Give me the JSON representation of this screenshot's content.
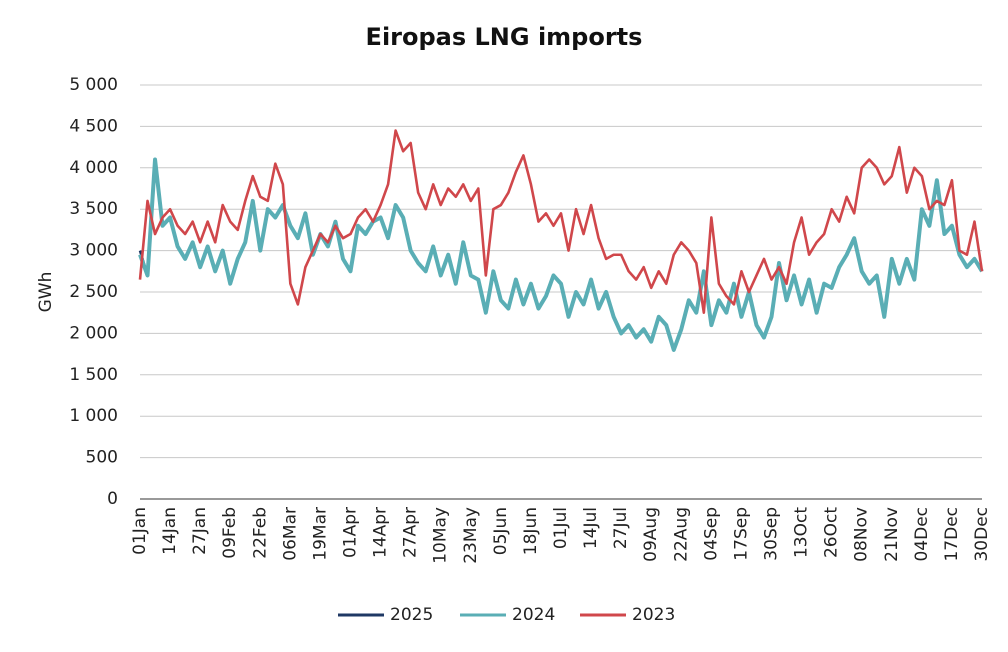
{
  "chart_data": {
    "type": "line",
    "title": "Eiropas LNG imports",
    "y_label": "GWh",
    "categories": [
      "01Jan",
      null,
      null,
      null,
      "14Jan",
      null,
      null,
      null,
      "27Jan",
      null,
      null,
      null,
      "09Feb",
      null,
      null,
      null,
      "22Feb",
      null,
      null,
      null,
      "06Mar",
      null,
      null,
      null,
      "19Mar",
      null,
      null,
      null,
      "01Apr",
      null,
      null,
      null,
      "14Apr",
      null,
      null,
      null,
      "27Apr",
      null,
      null,
      null,
      "10May",
      null,
      null,
      null,
      "23May",
      null,
      null,
      null,
      "05Jun",
      null,
      null,
      null,
      "18Jun",
      null,
      null,
      null,
      "01Jul",
      null,
      null,
      null,
      "14Jul",
      null,
      null,
      null,
      "27Jul",
      null,
      null,
      null,
      "09Aug",
      null,
      null,
      null,
      "22Aug",
      null,
      null,
      null,
      "04Sep",
      null,
      null,
      null,
      "17Sep",
      null,
      null,
      null,
      "30Sep",
      null,
      null,
      null,
      "13Oct",
      null,
      null,
      null,
      "26Oct",
      null,
      null,
      null,
      "08Nov",
      null,
      null,
      null,
      "21Nov",
      null,
      null,
      null,
      "04Dec",
      null,
      null,
      null,
      "17Dec",
      null,
      null,
      null,
      "30Dec"
    ],
    "series": [
      {
        "name": "2025",
        "color": "#1f3864",
        "values": [
          3000,
          2700,
          null,
          null,
          null,
          null,
          null,
          null,
          null,
          null,
          null,
          null,
          null,
          null,
          null,
          null,
          null,
          null,
          null,
          null,
          null,
          null,
          null,
          null,
          null,
          null,
          null,
          null,
          null,
          null,
          null,
          null,
          null,
          null,
          null,
          null,
          null,
          null,
          null,
          null,
          null,
          null,
          null,
          null,
          null,
          null,
          null,
          null,
          null,
          null,
          null,
          null,
          null,
          null,
          null,
          null,
          null,
          null,
          null,
          null,
          null,
          null,
          null,
          null,
          null,
          null,
          null,
          null,
          null,
          null,
          null,
          null,
          null,
          null,
          null,
          null,
          null,
          null,
          null,
          null,
          null,
          null,
          null,
          null,
          null,
          null,
          null,
          null,
          null,
          null,
          null,
          null,
          null,
          null,
          null,
          null,
          null,
          null,
          null,
          null,
          null,
          null,
          null,
          null,
          null,
          null,
          null,
          null,
          null,
          null,
          null,
          null,
          null
        ]
      },
      {
        "name": "2024",
        "color": "#5aaeb5",
        "values": [
          2950,
          2700,
          4100,
          3300,
          3400,
          3050,
          2900,
          3100,
          2800,
          3050,
          2750,
          3000,
          2600,
          2900,
          3100,
          3600,
          3000,
          3500,
          3400,
          3550,
          3300,
          3150,
          3450,
          2950,
          3200,
          3050,
          3350,
          2900,
          2750,
          3300,
          3200,
          3350,
          3400,
          3150,
          3550,
          3400,
          3000,
          2850,
          2750,
          3050,
          2700,
          2950,
          2600,
          3100,
          2700,
          2650,
          2250,
          2750,
          2400,
          2300,
          2650,
          2350,
          2600,
          2300,
          2450,
          2700,
          2600,
          2200,
          2500,
          2350,
          2650,
          2300,
          2500,
          2200,
          2000,
          2100,
          1950,
          2050,
          1900,
          2200,
          2100,
          1800,
          2050,
          2400,
          2250,
          2750,
          2100,
          2400,
          2250,
          2600,
          2200,
          2500,
          2100,
          1950,
          2200,
          2850,
          2400,
          2700,
          2350,
          2650,
          2250,
          2600,
          2550,
          2800,
          2950,
          3150,
          2750,
          2600,
          2700,
          2200,
          2900,
          2600,
          2900,
          2650,
          3500,
          3300,
          3850,
          3200,
          3300,
          2950,
          2800,
          2900,
          2750
        ]
      },
      {
        "name": "2023",
        "color": "#d0474b",
        "values": [
          2650,
          3600,
          3200,
          3400,
          3500,
          3300,
          3200,
          3350,
          3100,
          3350,
          3100,
          3550,
          3350,
          3250,
          3600,
          3900,
          3650,
          3600,
          4050,
          3800,
          2600,
          2350,
          2800,
          3000,
          3200,
          3100,
          3300,
          3150,
          3200,
          3400,
          3500,
          3350,
          3550,
          3800,
          4450,
          4200,
          4300,
          3700,
          3500,
          3800,
          3550,
          3750,
          3650,
          3800,
          3600,
          3750,
          2700,
          3500,
          3550,
          3700,
          3950,
          4150,
          3800,
          3350,
          3450,
          3300,
          3450,
          3000,
          3500,
          3200,
          3550,
          3150,
          2900,
          2950,
          2950,
          2750,
          2650,
          2800,
          2550,
          2750,
          2600,
          2950,
          3100,
          3000,
          2850,
          2250,
          3400,
          2600,
          2450,
          2350,
          2750,
          2500,
          2700,
          2900,
          2650,
          2800,
          2600,
          3100,
          3400,
          2950,
          3100,
          3200,
          3500,
          3350,
          3650,
          3450,
          4000,
          4100,
          4000,
          3800,
          3900,
          4250,
          3700,
          4000,
          3900,
          3500,
          3600,
          3550,
          3850,
          3000,
          2950,
          3350,
          2750
        ]
      }
    ],
    "ylim": [
      0,
      5000
    ],
    "yticks": [
      0,
      500,
      {
        "value": 1000,
        "label": "1 000"
      },
      {
        "value": 1500,
        "label": "1 500"
      },
      {
        "value": 2000,
        "label": "2 000"
      },
      {
        "value": 2500,
        "label": "2 500"
      },
      {
        "value": 3000,
        "label": "3 000"
      },
      {
        "value": 3500,
        "label": "3 500"
      },
      {
        "value": 4000,
        "label": "4 000"
      },
      {
        "value": 4500,
        "label": "4 500"
      },
      {
        "value": 5000,
        "label": "5 000"
      }
    ],
    "grid": true,
    "legend": "bottom"
  }
}
